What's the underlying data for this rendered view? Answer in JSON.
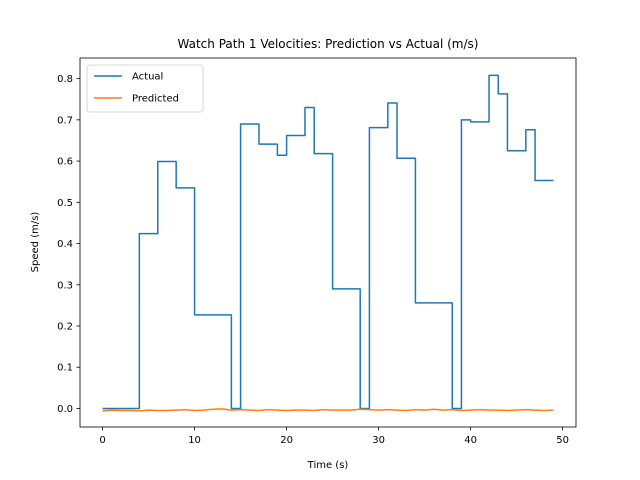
{
  "chart_data": {
    "type": "line",
    "title": "Watch Path 1 Velocities: Prediction vs Actual (m/s)",
    "xlabel": "Time (s)",
    "ylabel": "Speed (m/s)",
    "xlim": [
      -2.45,
      51.45
    ],
    "ylim": [
      -0.045,
      0.85
    ],
    "xticks": [
      0,
      10,
      20,
      30,
      40,
      50
    ],
    "xtick_labels": [
      "0",
      "10",
      "20",
      "30",
      "40",
      "50"
    ],
    "yticks": [
      0.0,
      0.1,
      0.2,
      0.3,
      0.4,
      0.5,
      0.6,
      0.7,
      0.8
    ],
    "ytick_labels": [
      "0.0",
      "0.1",
      "0.2",
      "0.3",
      "0.4",
      "0.5",
      "0.6",
      "0.7",
      "0.8"
    ],
    "legend_position": "top-left",
    "x": [
      0,
      1,
      2,
      3,
      4,
      5,
      6,
      7,
      8,
      9,
      10,
      11,
      12,
      13,
      14,
      15,
      16,
      17,
      18,
      19,
      20,
      21,
      22,
      23,
      24,
      25,
      26,
      27,
      28,
      29,
      30,
      31,
      32,
      33,
      34,
      35,
      36,
      37,
      38,
      39,
      40,
      41,
      42,
      43,
      44,
      45,
      46,
      47,
      48,
      49
    ],
    "series": [
      {
        "name": "Actual",
        "color": "#1f77b4",
        "step": "post",
        "values": [
          0.0,
          0.0,
          0.0,
          0.0,
          0.424,
          0.424,
          0.599,
          0.599,
          0.535,
          0.535,
          0.227,
          0.227,
          0.227,
          0.227,
          0.0,
          0.69,
          0.69,
          0.641,
          0.641,
          0.614,
          0.662,
          0.662,
          0.73,
          0.618,
          0.618,
          0.29,
          0.29,
          0.29,
          0.0,
          0.681,
          0.681,
          0.741,
          0.607,
          0.607,
          0.256,
          0.256,
          0.256,
          0.256,
          0.0,
          0.7,
          0.695,
          0.695,
          0.808,
          0.763,
          0.625,
          0.625,
          0.676,
          0.553,
          0.553,
          0.553
        ]
      },
      {
        "name": "Predicted",
        "color": "#ff7f0e",
        "step": "none",
        "values": [
          -0.006,
          -0.004,
          -0.005,
          -0.005,
          -0.006,
          -0.004,
          -0.005,
          -0.005,
          -0.004,
          -0.003,
          -0.005,
          -0.004,
          -0.002,
          -0.001,
          -0.004,
          -0.003,
          -0.004,
          -0.005,
          -0.003,
          -0.004,
          -0.005,
          -0.004,
          -0.004,
          -0.005,
          -0.003,
          -0.004,
          -0.004,
          -0.004,
          -0.002,
          -0.003,
          -0.004,
          -0.003,
          -0.004,
          -0.005,
          -0.003,
          -0.004,
          -0.002,
          -0.004,
          -0.003,
          -0.005,
          -0.004,
          -0.003,
          -0.004,
          -0.004,
          -0.005,
          -0.004,
          -0.003,
          -0.004,
          -0.005,
          -0.004
        ]
      }
    ]
  }
}
